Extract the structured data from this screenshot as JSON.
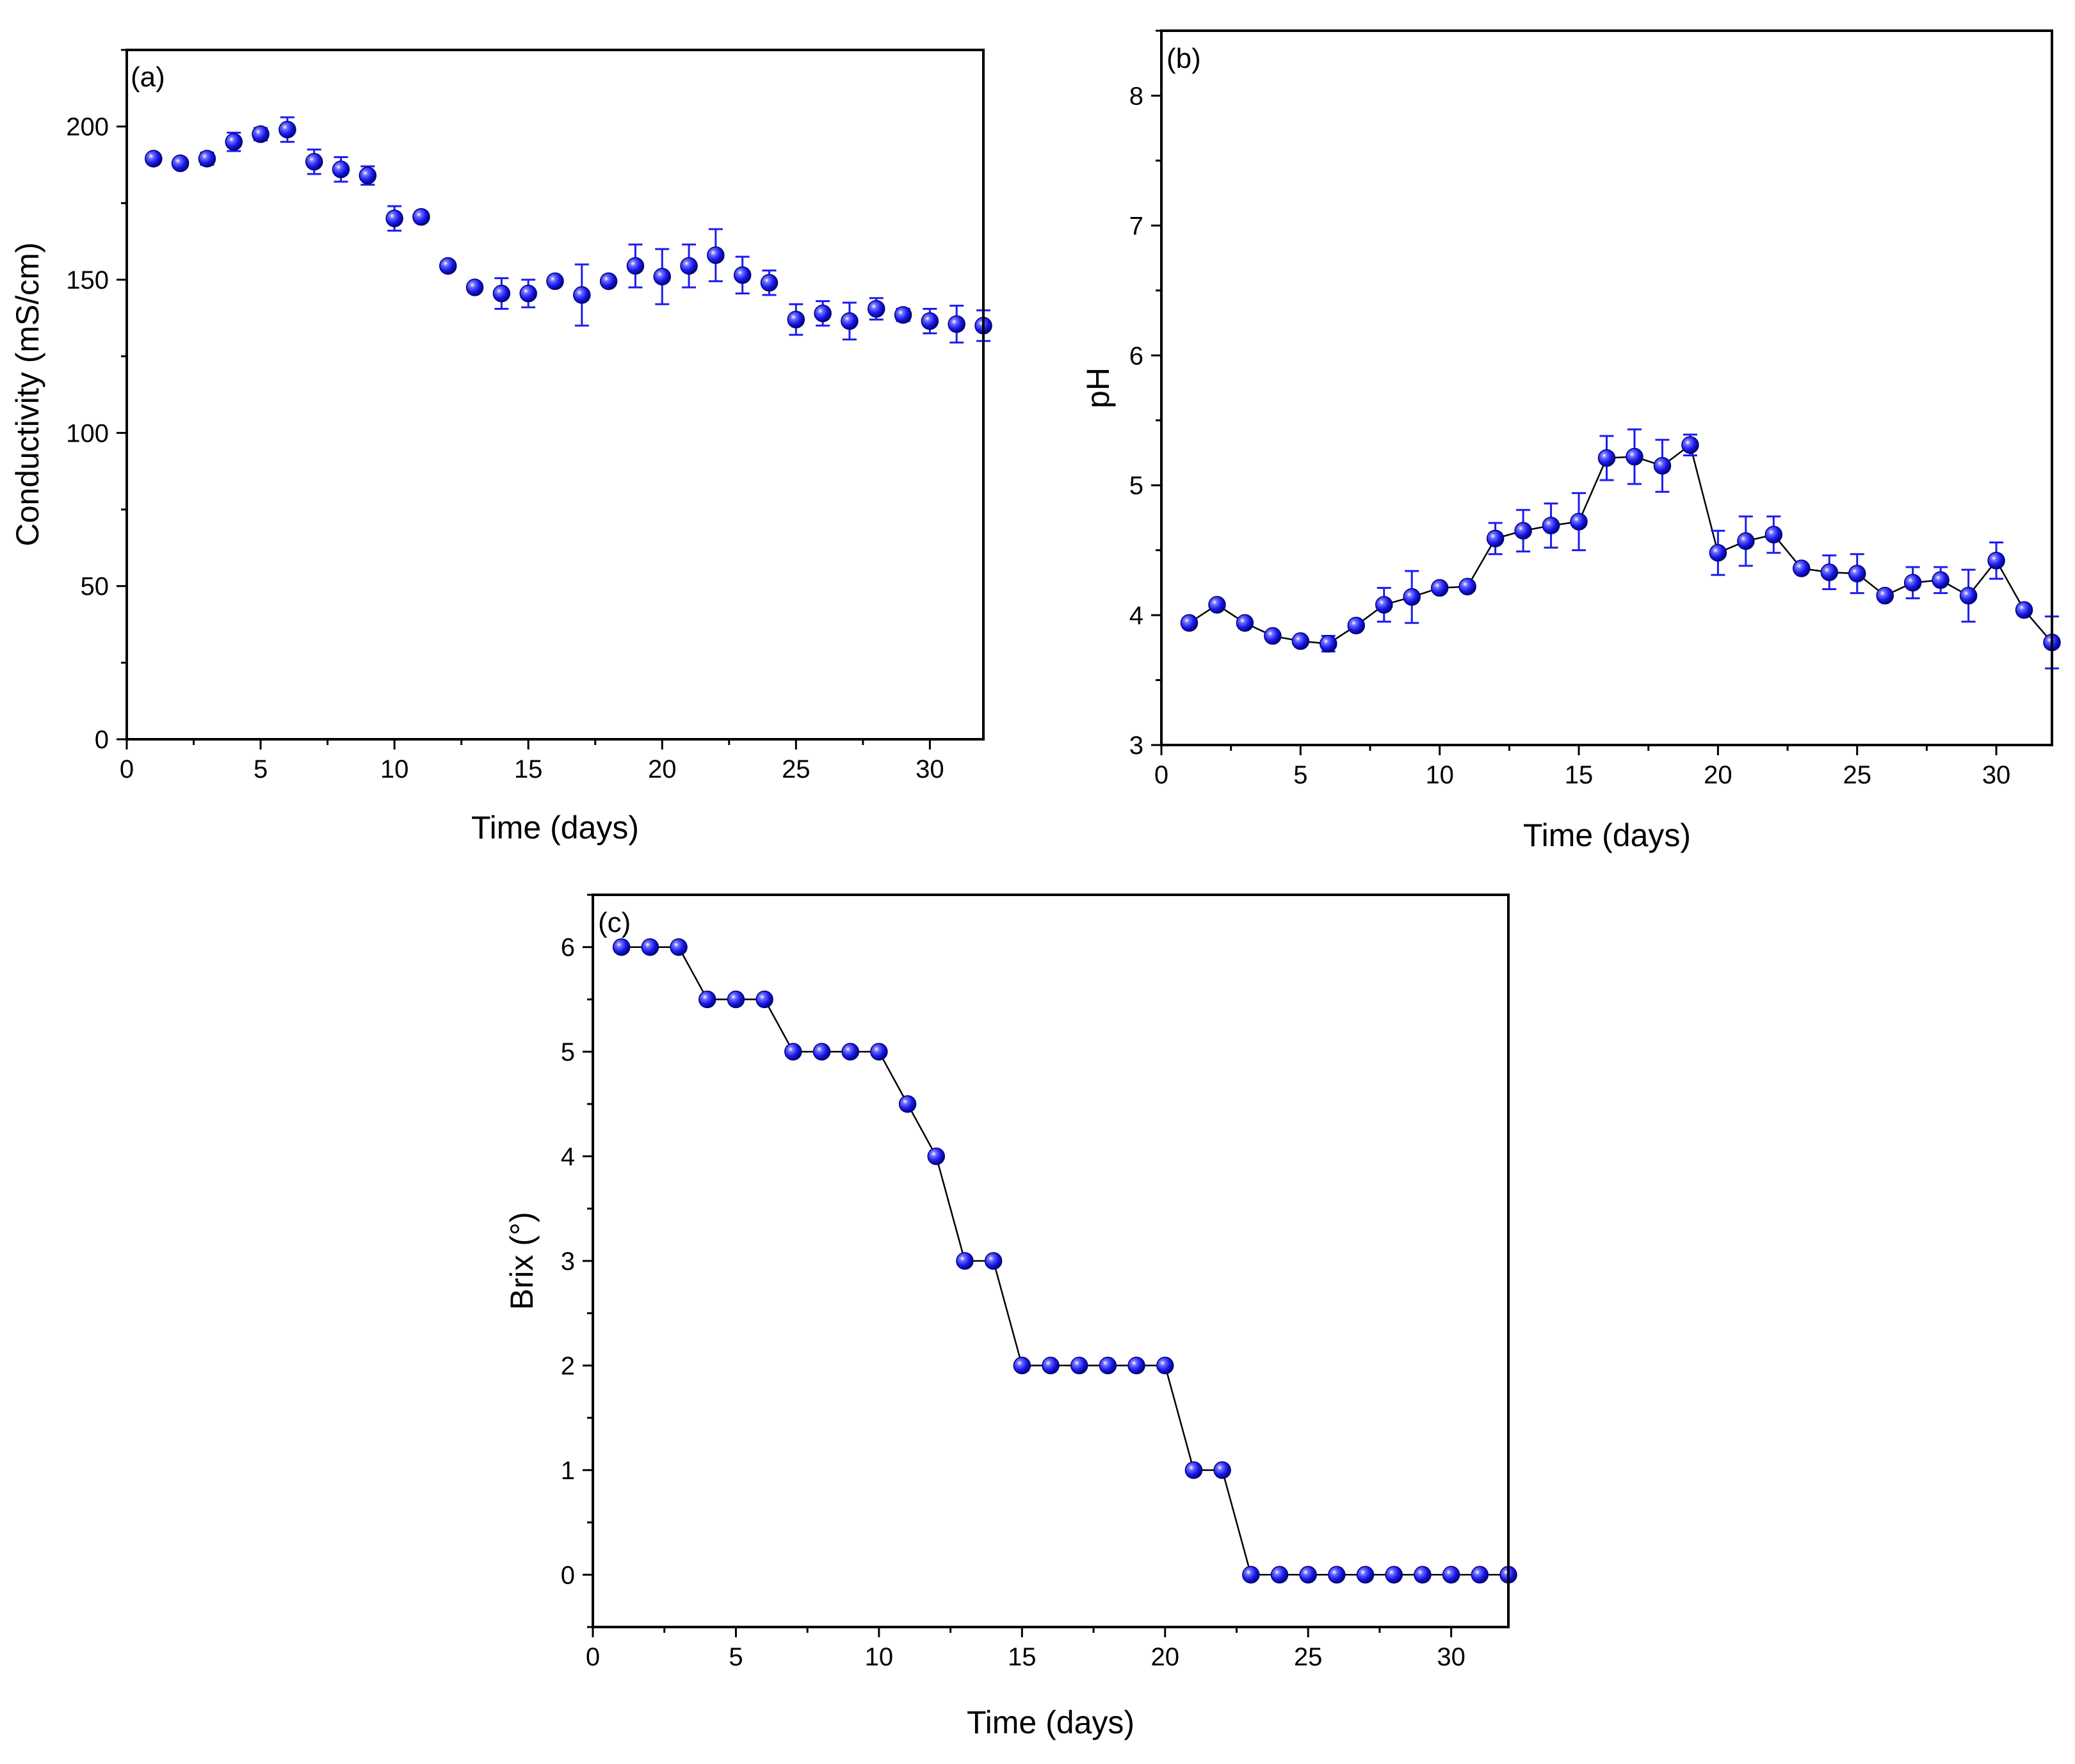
{
  "colors": {
    "marker": "#1c1cf0",
    "marker_highlight": "#e6e6ff",
    "marker_dark": "#00007a",
    "line": "#000000",
    "error_bar": "#1c1cf0",
    "axis": "#000000"
  },
  "chart_data": [
    {
      "id": "a",
      "type": "scatter",
      "panel_label": "(a)",
      "xlabel": "Time (days)",
      "ylabel": "Conductivity (mS/cm)",
      "xlim": [
        0,
        32
      ],
      "ylim": [
        0,
        225
      ],
      "xticks": [
        "0",
        "5",
        "10",
        "15",
        "20",
        "25",
        "30"
      ],
      "yticks": [
        "0",
        "50",
        "100",
        "150",
        "200"
      ],
      "connect_line": false,
      "x": [
        1,
        2,
        3,
        4,
        5,
        6,
        7,
        8,
        9,
        10,
        11,
        12,
        13,
        14,
        15,
        16,
        17,
        18,
        19,
        20,
        21,
        22,
        23,
        24,
        25,
        26,
        27,
        28,
        29,
        30,
        31,
        32
      ],
      "y": [
        189.5,
        188,
        189.5,
        195,
        197.5,
        199,
        188.5,
        186,
        184,
        170,
        170.5,
        154.5,
        147.5,
        145.5,
        145.5,
        149.5,
        145,
        149.5,
        154.5,
        151,
        154.5,
        158,
        151.5,
        149,
        137,
        139,
        136.5,
        140.5,
        138.5,
        136.5,
        135.5,
        135
      ],
      "err": [
        1.5,
        1.5,
        2,
        3,
        2,
        4,
        4,
        4,
        3,
        4,
        1.5,
        1.5,
        1.5,
        5,
        4.5,
        1.5,
        10,
        1.5,
        7,
        9,
        7,
        8.5,
        6,
        4,
        5,
        4,
        6,
        3.5,
        2,
        4,
        6,
        5
      ]
    },
    {
      "id": "b",
      "type": "line",
      "panel_label": "(b)",
      "xlabel": "Time (days)",
      "ylabel": "pH",
      "xlim": [
        0,
        32
      ],
      "ylim": [
        3,
        8.5
      ],
      "xticks": [
        "0",
        "5",
        "10",
        "15",
        "20",
        "25",
        "30"
      ],
      "yticks": [
        "3",
        "4",
        "5",
        "6",
        "7",
        "8"
      ],
      "connect_line": true,
      "x": [
        1,
        2,
        3,
        4,
        5,
        6,
        7,
        8,
        9,
        10,
        11,
        12,
        13,
        14,
        15,
        16,
        17,
        18,
        19,
        20,
        21,
        22,
        23,
        24,
        25,
        26,
        27,
        28,
        29,
        30,
        31,
        32
      ],
      "y": [
        3.94,
        4.08,
        3.94,
        3.84,
        3.8,
        3.78,
        3.92,
        4.08,
        4.14,
        4.21,
        4.22,
        4.59,
        4.65,
        4.69,
        4.72,
        5.21,
        5.22,
        5.15,
        5.31,
        4.48,
        4.57,
        4.62,
        4.36,
        4.33,
        4.32,
        4.15,
        4.25,
        4.27,
        4.15,
        4.42,
        4.04,
        3.79
      ],
      "err": [
        0.03,
        0.03,
        0.03,
        0.03,
        0.03,
        0.06,
        0.03,
        0.13,
        0.2,
        0.03,
        0.03,
        0.12,
        0.16,
        0.17,
        0.22,
        0.17,
        0.21,
        0.2,
        0.08,
        0.17,
        0.19,
        0.14,
        0.03,
        0.13,
        0.15,
        0.03,
        0.12,
        0.1,
        0.2,
        0.14,
        0.03,
        0.2
      ]
    },
    {
      "id": "c",
      "type": "line",
      "panel_label": "(c)",
      "xlabel": "Time (days)",
      "ylabel": "Brix (°)",
      "xlim": [
        0,
        32
      ],
      "ylim": [
        -0.5,
        6.5
      ],
      "xticks": [
        "0",
        "5",
        "10",
        "15",
        "20",
        "25",
        "30"
      ],
      "yticks": [
        "0",
        "1",
        "2",
        "3",
        "4",
        "5",
        "6"
      ],
      "connect_line": true,
      "x": [
        1,
        2,
        3,
        4,
        5,
        6,
        7,
        8,
        9,
        10,
        11,
        12,
        13,
        14,
        15,
        16,
        17,
        18,
        19,
        20,
        21,
        22,
        23,
        24,
        25,
        26,
        27,
        28,
        29,
        30,
        31,
        32
      ],
      "y": [
        6,
        6,
        6,
        5.5,
        5.5,
        5.5,
        5,
        5,
        5,
        5,
        4.5,
        4,
        3,
        3,
        2,
        2,
        2,
        2,
        2,
        2,
        1,
        1,
        0,
        0,
        0,
        0,
        0,
        0,
        0,
        0,
        0,
        0
      ],
      "err": []
    }
  ]
}
